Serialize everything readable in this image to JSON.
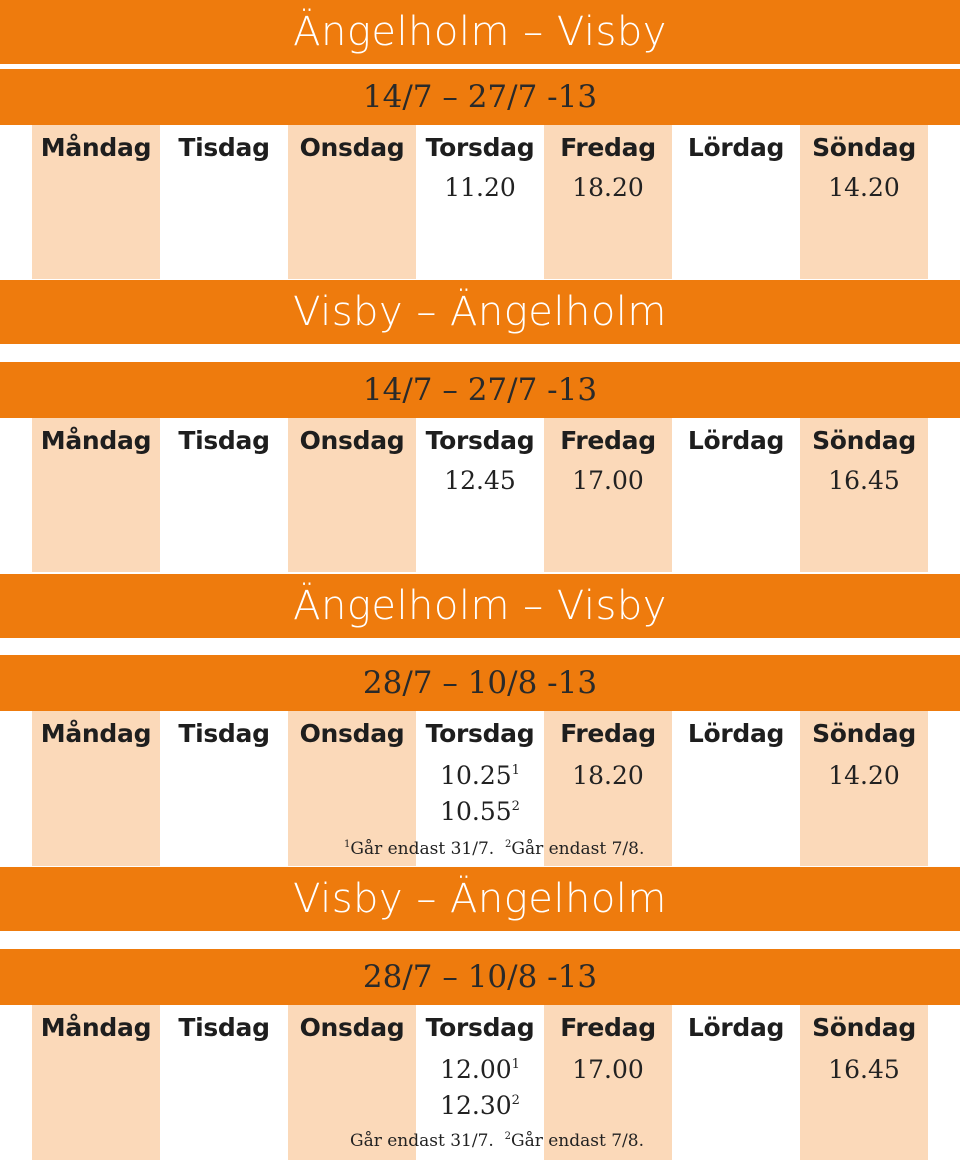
{
  "days": [
    "Måndag",
    "Tisdag",
    "Onsdag",
    "Torsdag",
    "Fredag",
    "Lördag",
    "Söndag"
  ],
  "colors": {
    "accent": "#ee7b0d",
    "shade": "#fbd9b9"
  },
  "sections": [
    {
      "title": "Ängelholm – Visby",
      "period": "14/7 – 27/7 -13",
      "times": {
        "thu": [
          "11.20"
        ],
        "fri": [
          "18.20"
        ],
        "sun": [
          "14.20"
        ]
      }
    },
    {
      "title": "Visby – Ängelholm",
      "period": "14/7 – 27/7 -13",
      "times": {
        "thu": [
          "12.45"
        ],
        "fri": [
          "17.00"
        ],
        "sun": [
          "16.45"
        ]
      }
    },
    {
      "title": "Ängelholm – Visby",
      "period": "28/7 – 10/8 -13",
      "times": {
        "thu": [
          {
            "time": "10.25",
            "sup": "1"
          },
          {
            "time": "10.55",
            "sup": "2"
          }
        ],
        "fri": [
          "18.20"
        ],
        "sun": [
          "14.20"
        ]
      },
      "note": {
        "sup1": "1",
        "text1": "Går endast 31/7.",
        "sup2": "2",
        "text2": "Går endast 7/8."
      }
    },
    {
      "title": "Visby – Ängelholm",
      "period": "28/7 – 10/8 -13",
      "times": {
        "thu": [
          {
            "time": "12.00",
            "sup": "1"
          },
          {
            "time": "12.30",
            "sup": "2"
          }
        ],
        "fri": [
          "17.00"
        ],
        "sun": [
          "16.45"
        ]
      },
      "note": {
        "sup1": "",
        "text1": "Går endast 31/7.",
        "sup2": "2",
        "text2": "Går endast 7/8."
      }
    }
  ]
}
